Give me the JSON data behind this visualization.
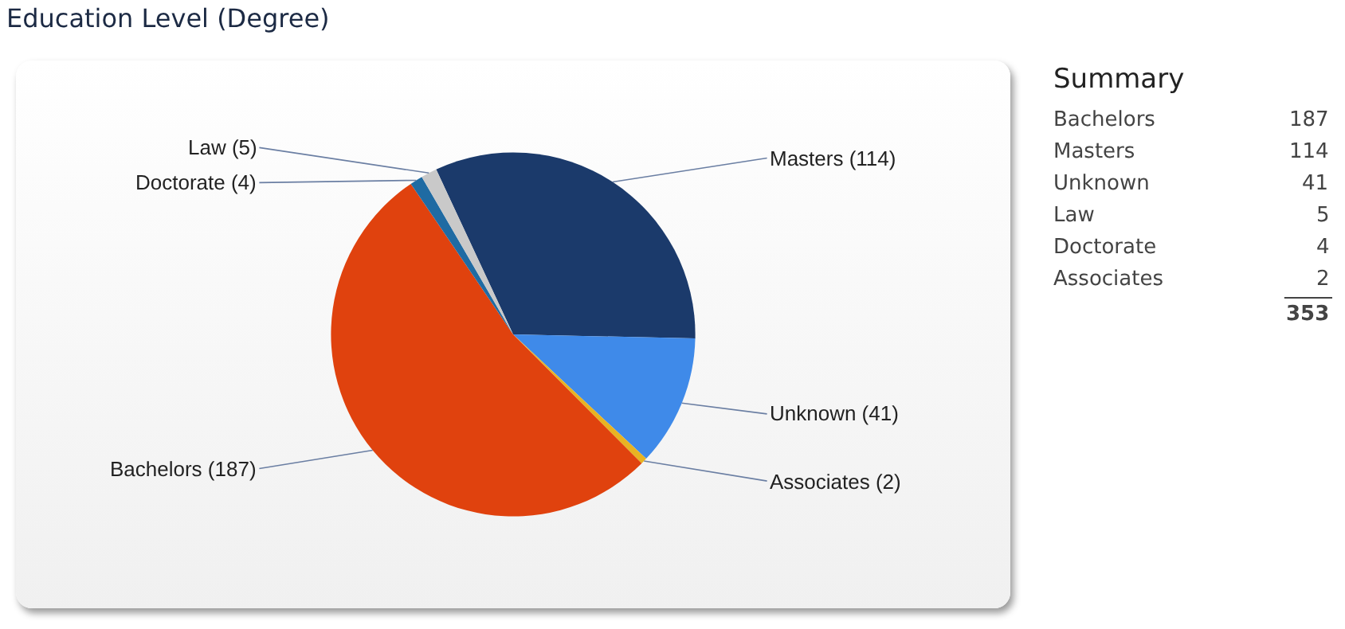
{
  "chart_data": [
    {
      "type": "pie",
      "title": "Education Level (Degree)",
      "categories": [
        "Masters",
        "Unknown",
        "Associates",
        "Bachelors",
        "Doctorate",
        "Law"
      ],
      "values": [
        114,
        41,
        2,
        187,
        4,
        5
      ],
      "value_labels": [
        "(114)",
        "(41)",
        "(2)",
        "(187)",
        "(4)",
        "(5)"
      ],
      "data_labels": true,
      "colors": [
        "#1b3a6b",
        "#3f8ae9",
        "#e8b322",
        "#e0420e",
        "#1f6ba3",
        "#c9c9c9"
      ],
      "legend": false
    },
    {
      "type": "other",
      "title": "Summary",
      "categories": [
        "Bachelors",
        "Masters",
        "Unknown",
        "Law",
        "Doctorate",
        "Associates"
      ],
      "values": [
        187,
        114,
        41,
        5,
        4,
        2
      ],
      "data_labels": true,
      "totals": [
        "353"
      ]
    }
  ]
}
